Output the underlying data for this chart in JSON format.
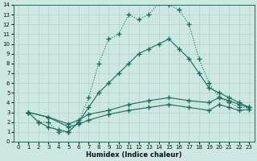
{
  "xlabel": "Humidex (Indice chaleur)",
  "bg_color": "#cce8e0",
  "line_color": "#1a6b5e",
  "xlim": [
    -0.5,
    23.5
  ],
  "ylim": [
    0,
    14
  ],
  "xticks": [
    0,
    1,
    2,
    3,
    4,
    5,
    6,
    7,
    8,
    9,
    10,
    11,
    12,
    13,
    14,
    15,
    16,
    17,
    18,
    19,
    20,
    21,
    22,
    23
  ],
  "yticks": [
    0,
    1,
    2,
    3,
    4,
    5,
    6,
    7,
    8,
    9,
    10,
    11,
    12,
    13,
    14
  ],
  "line1_x": [
    1,
    2,
    3,
    4,
    5,
    6,
    7,
    8,
    9,
    10,
    11,
    12,
    13,
    14,
    15,
    16,
    17,
    18,
    19,
    20,
    21,
    22,
    23
  ],
  "line1_y": [
    3,
    2,
    2,
    1,
    1,
    2,
    4.5,
    8,
    10.5,
    11,
    13,
    12.5,
    13,
    14.2,
    14,
    13.5,
    12,
    8.5,
    6,
    4.5,
    4,
    3.5,
    3.5
  ],
  "line2_x": [
    1,
    2,
    3,
    4,
    5,
    6,
    7,
    8,
    9,
    10,
    11,
    12,
    13,
    14,
    15,
    16,
    17,
    18,
    19,
    20,
    21,
    22,
    23
  ],
  "line2_y": [
    3,
    2,
    1.5,
    1.2,
    1.0,
    2.0,
    3.5,
    5,
    6,
    7,
    8,
    9,
    9.5,
    10,
    10.5,
    9.5,
    8.5,
    7,
    5.5,
    5,
    4.5,
    4,
    3.5
  ],
  "line3_x": [
    1,
    3,
    5,
    6,
    7,
    9,
    11,
    13,
    15,
    17,
    19,
    20,
    21,
    22,
    23
  ],
  "line3_y": [
    3,
    2.5,
    1.8,
    2.2,
    2.8,
    3.2,
    3.8,
    4.2,
    4.5,
    4.2,
    4.0,
    4.5,
    4.2,
    3.8,
    3.5
  ],
  "line4_x": [
    1,
    3,
    5,
    6,
    7,
    9,
    11,
    13,
    15,
    17,
    19,
    20,
    21,
    22,
    23
  ],
  "line4_y": [
    3,
    2.5,
    1.5,
    1.8,
    2.2,
    2.8,
    3.2,
    3.5,
    3.8,
    3.5,
    3.2,
    3.8,
    3.5,
    3.2,
    3.3
  ]
}
